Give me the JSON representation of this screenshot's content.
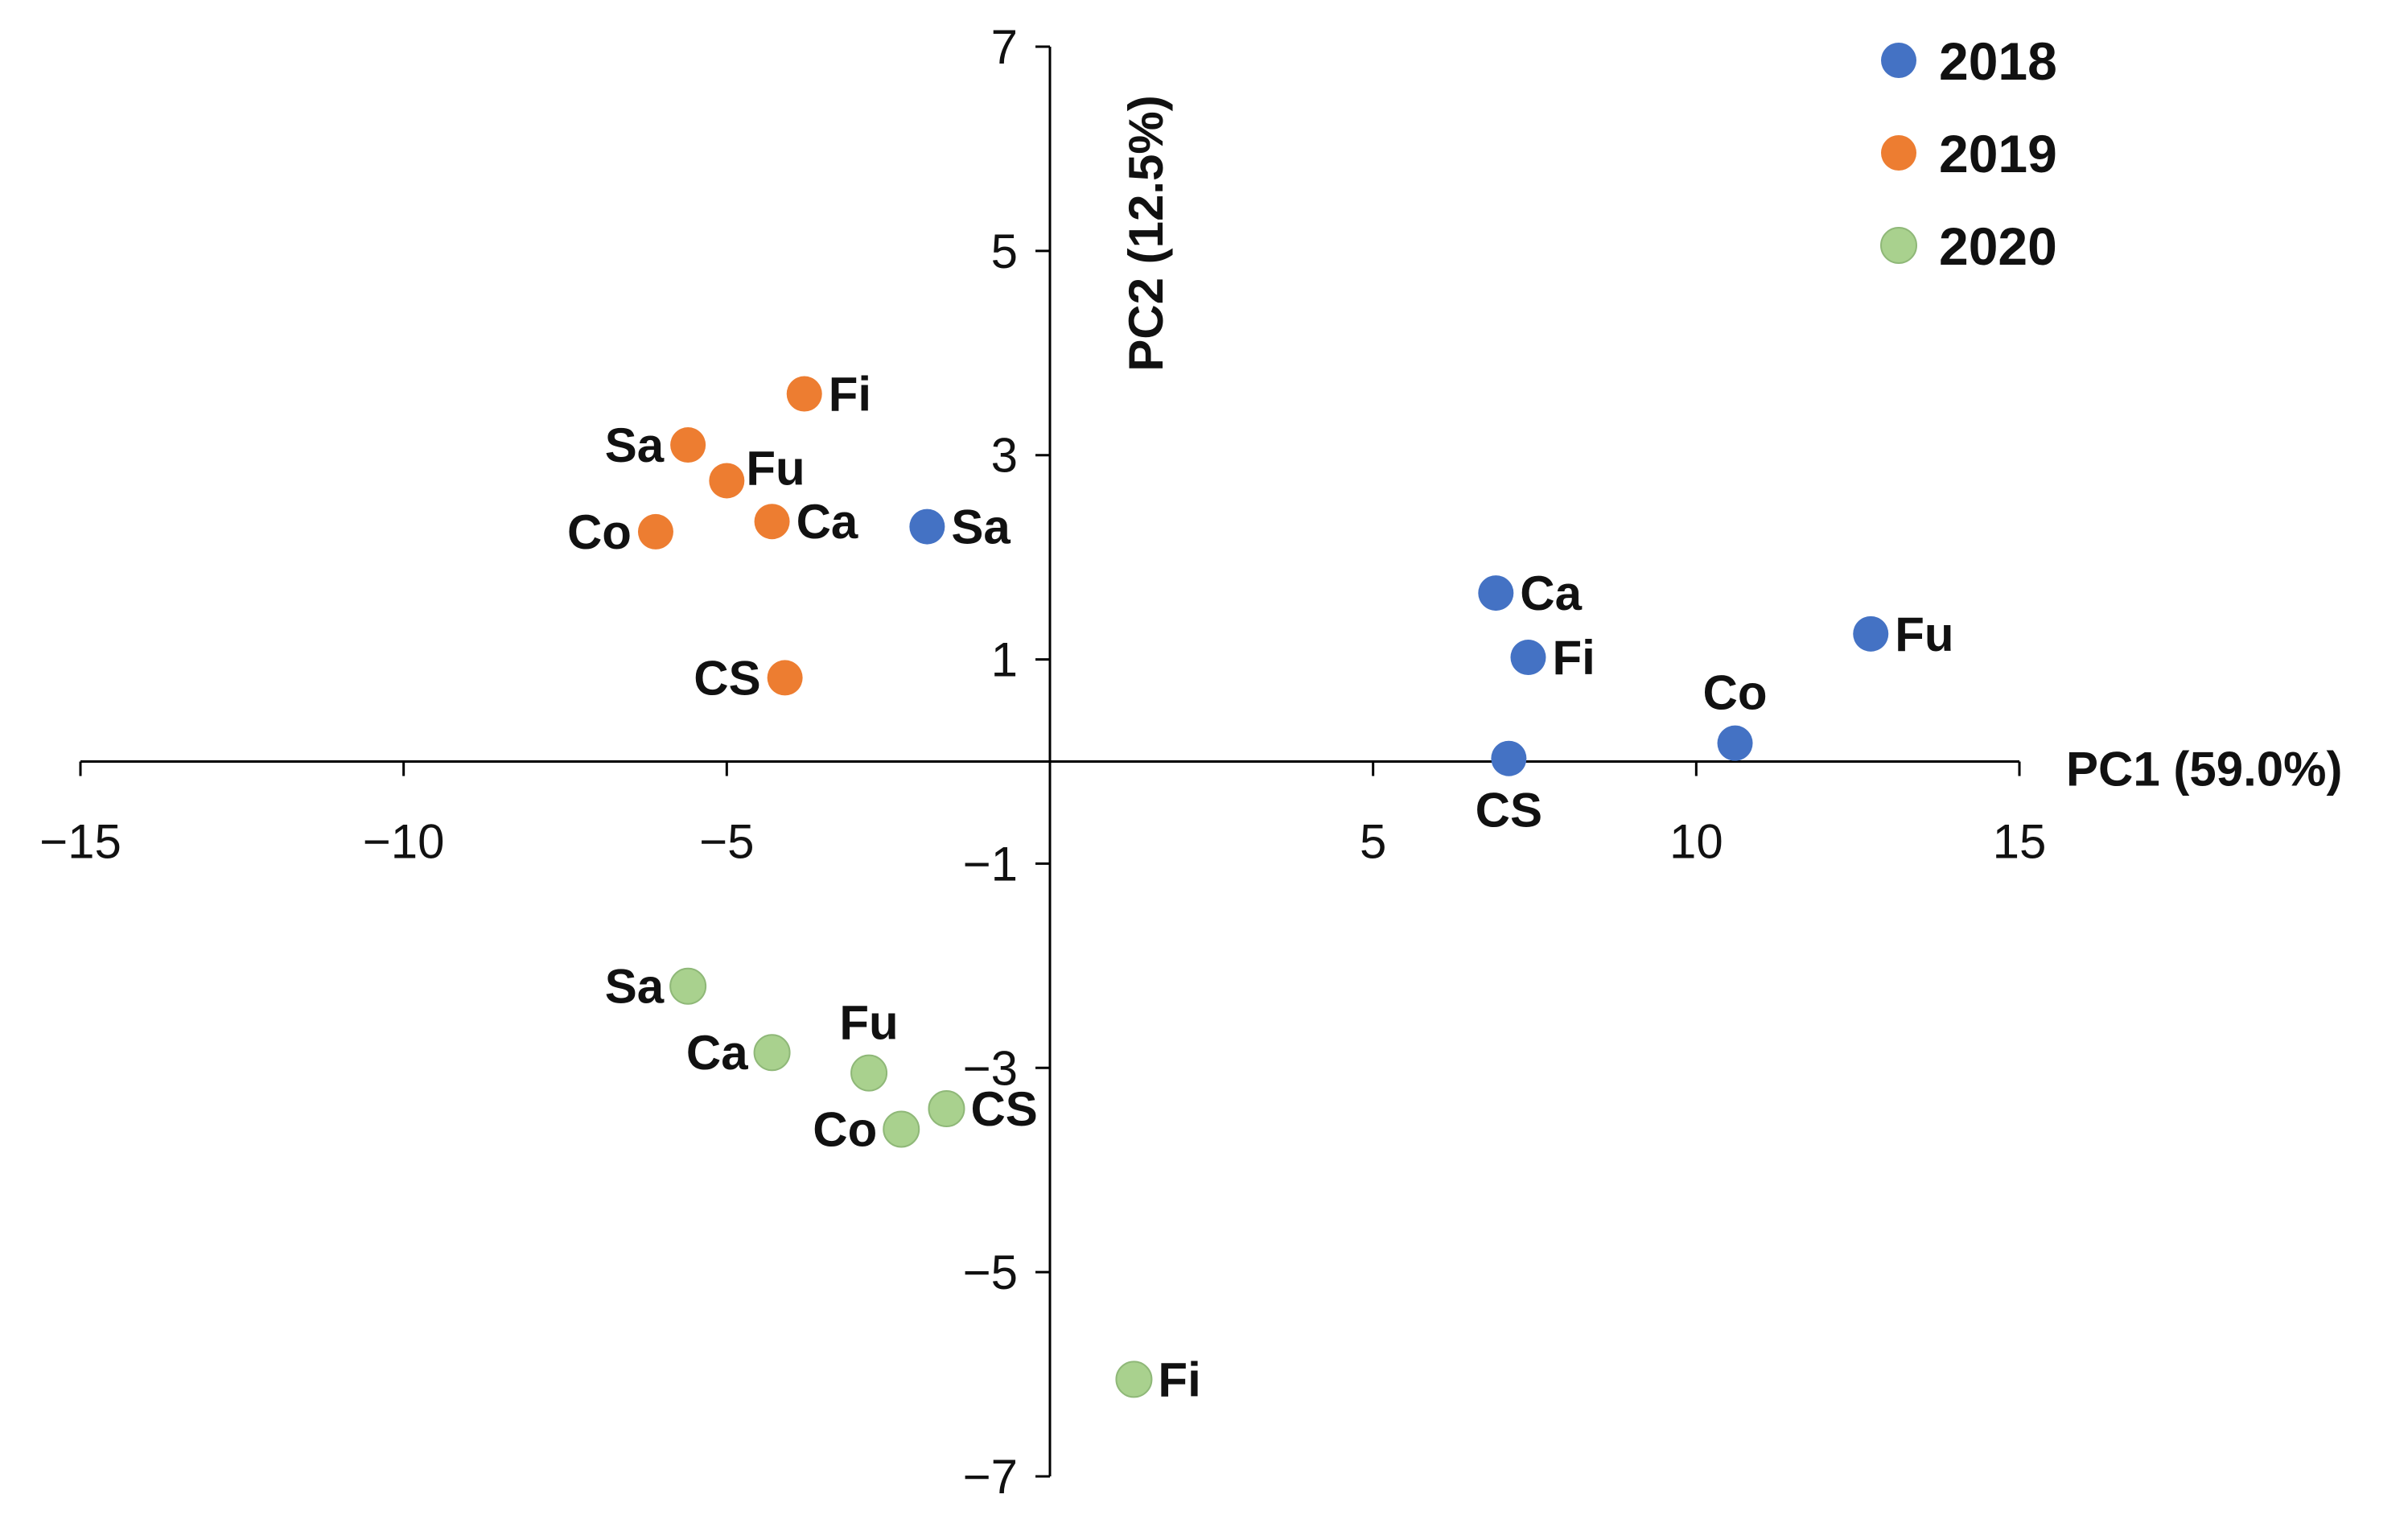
{
  "chart_data": {
    "type": "scatter",
    "title": "",
    "xlabel": "PC1 (59.0%)",
    "ylabel": "PC2 (12.5%)",
    "xlim": [
      -15,
      15
    ],
    "ylim": [
      -7,
      7
    ],
    "x_ticks": [
      -15,
      -10,
      -5,
      5,
      10,
      15
    ],
    "x_tick_labels": [
      "−15",
      "−10",
      "−5",
      "5",
      "10",
      "15"
    ],
    "y_ticks": [
      7,
      5,
      3,
      1,
      -1,
      -3,
      -5,
      -7
    ],
    "y_tick_labels": [
      "7",
      "5",
      "3",
      "1",
      "−1",
      "−3",
      "−5",
      "−7"
    ],
    "grid": false,
    "legend_position": "top-right",
    "series": [
      {
        "name": "2018",
        "color": "#4472C4",
        "points": [
          {
            "label": "Sa",
            "x": -1.9,
            "y": 2.3
          },
          {
            "label": "Ca",
            "x": 6.9,
            "y": 1.65
          },
          {
            "label": "Fi",
            "x": 7.4,
            "y": 1.02
          },
          {
            "label": "Fu",
            "x": 12.7,
            "y": 1.25
          },
          {
            "label": "Co",
            "x": 10.6,
            "y": 0.18
          },
          {
            "label": "CS",
            "x": 7.1,
            "y": 0.03
          }
        ]
      },
      {
        "name": "2019",
        "color": "#ED7D31",
        "points": [
          {
            "label": "Fi",
            "x": -3.8,
            "y": 3.6
          },
          {
            "label": "Sa",
            "x": -5.6,
            "y": 3.1
          },
          {
            "label": "Fu",
            "x": -5.0,
            "y": 2.75
          },
          {
            "label": "Ca",
            "x": -4.3,
            "y": 2.35
          },
          {
            "label": "Co",
            "x": -6.1,
            "y": 2.25
          },
          {
            "label": "CS",
            "x": -4.1,
            "y": 0.82
          }
        ]
      },
      {
        "name": "2020",
        "color": "#A9D18E",
        "points": [
          {
            "label": "Sa",
            "x": -5.6,
            "y": -2.2
          },
          {
            "label": "Ca",
            "x": -4.3,
            "y": -2.85
          },
          {
            "label": "Fu",
            "x": -2.8,
            "y": -3.05
          },
          {
            "label": "CS",
            "x": -1.6,
            "y": -3.4
          },
          {
            "label": "Co",
            "x": -2.3,
            "y": -3.6
          },
          {
            "label": "Fi",
            "x": 1.3,
            "y": -6.05
          }
        ]
      }
    ]
  }
}
